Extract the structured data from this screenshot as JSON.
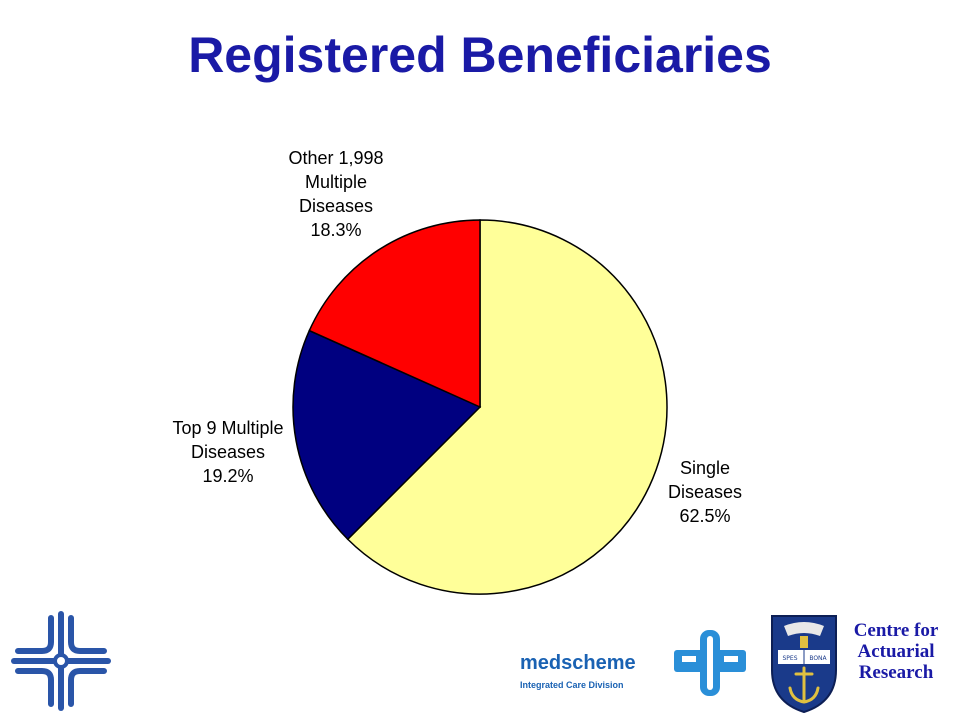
{
  "slide": {
    "title": "Registered Beneficiaries"
  },
  "chart_data": {
    "type": "pie",
    "title": "",
    "slices": [
      {
        "label_lines": [
          "Single",
          "Diseases",
          "62.5%"
        ],
        "value": 62.5,
        "color": "#ffff99"
      },
      {
        "label_lines": [
          "Top 9 Multiple",
          "Diseases",
          "19.2%"
        ],
        "value": 19.2,
        "color": "#000080"
      },
      {
        "label_lines": [
          "Other 1,998",
          "Multiple",
          "Diseases",
          "18.3%"
        ],
        "value": 18.3,
        "color": "#ff0000"
      }
    ],
    "start_angle": "12 o'clock",
    "direction": "clockwise",
    "legend": "none"
  },
  "logos": {
    "medscheme": {
      "name": "medscheme",
      "subtitle": "Integrated Care Division"
    },
    "crest": {
      "motto_left": "SPES",
      "motto_right": "BONA"
    },
    "centre": {
      "lines": [
        "Centre for",
        "Actuarial",
        "Research"
      ]
    }
  }
}
